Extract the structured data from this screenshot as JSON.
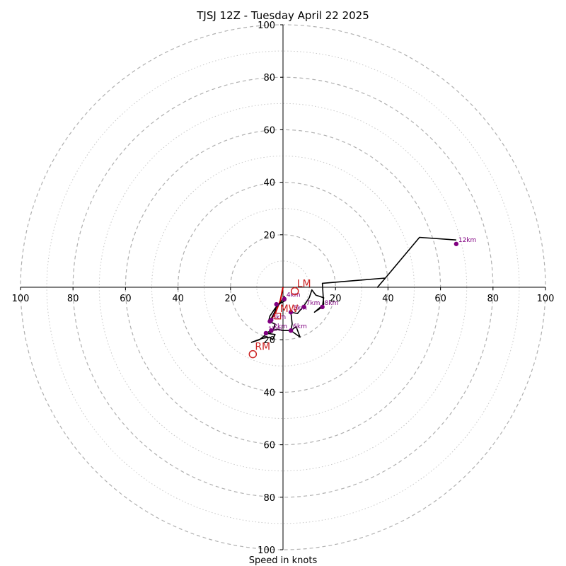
{
  "chart_data": {
    "type": "hodograph",
    "title": "TJSJ 12Z - Tuesday April 22 2025",
    "xlabel": "Speed in knots",
    "units": "knots",
    "max_speed": 100,
    "ring_major_interval": 20,
    "ring_minor_interval": 10,
    "x_ticks": [
      "100",
      "80",
      "60",
      "40",
      "20",
      "20",
      "40",
      "60",
      "80",
      "100"
    ],
    "y_ticks": [
      "100",
      "80",
      "60",
      "40",
      "20",
      "20",
      "40",
      "60",
      "80",
      "100"
    ],
    "colors": {
      "profile": "#000000",
      "low_level": "#cc0000",
      "height_marker": "#800080",
      "motion": "#cc2222",
      "grid": "#b0b0b0"
    },
    "low_level_segment": [
      {
        "u": 0,
        "v": 0
      },
      {
        "u": -1,
        "v": -5
      },
      {
        "u": -3,
        "v": -10
      },
      {
        "u": -5,
        "v": -13
      }
    ],
    "profile": [
      {
        "u": -5,
        "v": -13
      },
      {
        "u": -4,
        "v": -11
      },
      {
        "u": -3,
        "v": -9
      },
      {
        "u": -2.5,
        "v": -7
      },
      {
        "u": 1,
        "v": -5
      },
      {
        "u": 0.5,
        "v": -3.5
      },
      {
        "u": -1,
        "v": -6
      },
      {
        "u": -3,
        "v": -8
      },
      {
        "u": -5,
        "v": -11
      },
      {
        "u": -5.5,
        "v": -13
      },
      {
        "u": -3,
        "v": -14
      },
      {
        "u": -4,
        "v": -17
      },
      {
        "u": -6.5,
        "v": -18
      },
      {
        "u": -9,
        "v": -20
      },
      {
        "u": -12,
        "v": -21
      },
      {
        "u": -8,
        "v": -19.5
      },
      {
        "u": -5,
        "v": -19
      },
      {
        "u": -4,
        "v": -20
      },
      {
        "u": -3,
        "v": -18
      },
      {
        "u": -6.5,
        "v": -17.5
      },
      {
        "u": -4.5,
        "v": -16.5
      },
      {
        "u": -2,
        "v": -16
      },
      {
        "u": 0,
        "v": -16.5
      },
      {
        "u": 3,
        "v": -16.5
      },
      {
        "u": 5,
        "v": -15
      },
      {
        "u": 6.5,
        "v": -19
      },
      {
        "u": 3,
        "v": -16.5
      },
      {
        "u": 3.5,
        "v": -14
      },
      {
        "u": 3,
        "v": -9.5
      },
      {
        "u": 5.5,
        "v": -10
      },
      {
        "u": 8,
        "v": -7
      },
      {
        "u": 10,
        "v": -4
      },
      {
        "u": 11,
        "v": -1
      },
      {
        "u": 12.5,
        "v": -3
      },
      {
        "u": 15.5,
        "v": -4
      },
      {
        "u": 15,
        "v": -7.5
      },
      {
        "u": 12,
        "v": -9.5
      },
      {
        "u": 15.5,
        "v": -6.5
      },
      {
        "u": 15,
        "v": 1.5
      },
      {
        "u": 39,
        "v": 3.5
      },
      {
        "u": 36,
        "v": 0
      },
      {
        "u": 39,
        "v": 3.5
      },
      {
        "u": 52,
        "v": 19
      },
      {
        "u": 66,
        "v": 18
      }
    ],
    "height_markers": [
      {
        "label": "1km",
        "u": -6.5,
        "v": -17.5
      },
      {
        "label": "2km",
        "u": -4.5,
        "v": -16.5
      },
      {
        "label": "3km",
        "u": -5,
        "v": -13
      },
      {
        "label": "4km",
        "u": 0.5,
        "v": -4.5
      },
      {
        "label": "5km",
        "u": 3,
        "v": -9.5
      },
      {
        "label": "6km",
        "u": 3,
        "v": -16.5
      },
      {
        "label": "7km",
        "u": 8,
        "v": -7.5
      },
      {
        "label": "8km",
        "u": 15,
        "v": -7.5
      },
      {
        "label": "12km",
        "u": 66,
        "v": 16.5
      }
    ],
    "extra_points": [
      {
        "u": -2.5,
        "v": -6.5
      },
      {
        "u": -4.5,
        "v": -12.5
      }
    ],
    "storm_motion": [
      {
        "label": "LM",
        "u": 4.5,
        "v": -1.5
      },
      {
        "label": "MW",
        "u": -2,
        "v": -11
      },
      {
        "label": "RM",
        "u": -11.5,
        "v": -25.5
      }
    ],
    "grid": true,
    "axes": "centered at origin"
  }
}
